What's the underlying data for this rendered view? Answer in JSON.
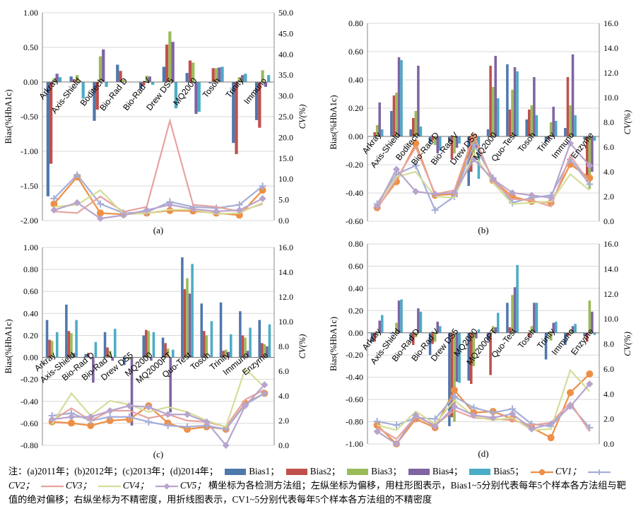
{
  "colors": {
    "bias": [
      "#4f78ad",
      "#c0504d",
      "#9bbb59",
      "#8064a2",
      "#4bacc6"
    ],
    "cv": [
      "#ee8f45",
      "#a4aed8",
      "#e6a39f",
      "#d5dd9a",
      "#b8a4cc"
    ]
  },
  "chart_data": [
    {
      "type": "bar",
      "panel_label": "(a)",
      "ylabel": "Bias(%HbA1c)",
      "y2label": "CV(%)",
      "ylim": [
        -2.0,
        1.0
      ],
      "yticks": [
        "1.00",
        "0.50",
        "0.00",
        "-0.50",
        "-1.00",
        "-1.50",
        "-2.00"
      ],
      "y2lim": [
        0,
        50
      ],
      "y2ticks": [
        "50.0",
        "45.0",
        "40.0",
        "35.0",
        "30.0",
        "25.0",
        "20.0",
        "15.0",
        "10.0",
        "5.0",
        "0.0"
      ],
      "categories": [
        "Arkray",
        "Axis-Shield",
        "Boditech",
        "Bio-Rad D",
        "Bio-Rad V",
        "Drew DS5",
        "MQ2000",
        "Tosoh",
        "Trinity",
        "Immuno"
      ],
      "bar_series": [
        {
          "name": "Bias1",
          "values": [
            -1.65,
            0.08,
            -0.56,
            0.25,
            -0.1,
            0.22,
            0.13,
            -0.02,
            -0.88,
            -0.55
          ]
        },
        {
          "name": "Bias2",
          "values": [
            -1.18,
            0.04,
            -0.4,
            0.16,
            -0.05,
            0.54,
            0.31,
            0.2,
            -1.04,
            -0.66
          ]
        },
        {
          "name": "Bias3",
          "values": [
            0.05,
            0.1,
            0.37,
            0.03,
            0.09,
            0.73,
            0.28,
            0.2,
            0.07,
            0.17
          ]
        },
        {
          "name": "Bias4",
          "values": [
            0.12,
            0.01,
            0.47,
            0.0,
            0.08,
            0.58,
            -0.46,
            0.21,
            0.1,
            -0.07
          ]
        },
        {
          "name": "Bias5",
          "values": [
            0.07,
            -0.24,
            -0.07,
            0.0,
            -0.04,
            -0.38,
            -0.43,
            0.22,
            0.12,
            0.1
          ]
        }
      ],
      "cv_series": [
        {
          "name": "CV1",
          "values": [
            4.0,
            10.5,
            1.8,
            1.5,
            1.8,
            2.4,
            2.3,
            1.8,
            1.3,
            7.3
          ]
        },
        {
          "name": "CV2",
          "values": [
            5.3,
            11.0,
            4.0,
            1.8,
            2.0,
            4.5,
            3.3,
            3.0,
            3.8,
            8.3
          ]
        },
        {
          "name": "CV3",
          "values": [
            2.2,
            1.8,
            5.8,
            2.1,
            3.3,
            24.0,
            3.8,
            3.3,
            2.2,
            4.0
          ]
        },
        {
          "name": "CV4",
          "values": [
            3.3,
            3.8,
            7.3,
            1.6,
            1.8,
            2.6,
            2.6,
            1.6,
            1.8,
            4.3
          ]
        },
        {
          "name": "CV5",
          "values": [
            2.5,
            4.3,
            0.5,
            1.3,
            2.5,
            3.8,
            2.8,
            2.2,
            2.5,
            5.3
          ]
        }
      ]
    },
    {
      "type": "bar",
      "panel_label": "(b)",
      "ylabel": "Bias(%HbA1c)",
      "y2label": "CV(%)",
      "ylim": [
        -0.6,
        0.8
      ],
      "yticks": [
        "0.80",
        "0.60",
        "0.40",
        "0.20",
        "0.00",
        "-0.20",
        "-0.40",
        "-0.60"
      ],
      "y2lim": [
        0,
        16
      ],
      "y2ticks": [
        "16.0",
        "14.0",
        "12.0",
        "10.0",
        "8.0",
        "6.0",
        "4.0",
        "2.0",
        "0.0"
      ],
      "categories": [
        "Arkray",
        "Axis-Shield",
        "Boditech",
        "Bio-Rad D",
        "Bio-Rad V",
        "Drew DS5",
        "MQ2000",
        "Quo-Test",
        "Tosoh",
        "Trinity",
        "Immuno",
        "Enzyme"
      ],
      "bar_series": [
        {
          "name": "Bias1",
          "values": [
            0.0,
            0.18,
            0.05,
            -0.05,
            -0.04,
            -0.35,
            0.05,
            0.51,
            0.12,
            -0.04,
            0.06,
            -0.02
          ]
        },
        {
          "name": "Bias2",
          "values": [
            0.03,
            0.29,
            0.13,
            -0.03,
            -0.16,
            -0.25,
            0.5,
            0.19,
            0.19,
            -0.02,
            0.42,
            -0.32
          ]
        },
        {
          "name": "Bias3",
          "values": [
            0.08,
            0.31,
            0.18,
            -0.06,
            -0.12,
            -0.18,
            0.35,
            0.33,
            0.22,
            0.1,
            0.22,
            -0.37
          ]
        },
        {
          "name": "Bias4",
          "values": [
            0.24,
            0.56,
            0.5,
            -0.12,
            -0.08,
            -0.08,
            0.57,
            0.49,
            0.42,
            0.21,
            0.58,
            -0.25
          ]
        },
        {
          "name": "Bias5",
          "values": [
            0.05,
            0.54,
            0.07,
            -0.1,
            -0.05,
            -0.3,
            0.27,
            0.46,
            0.15,
            0.11,
            0.15,
            -0.03
          ]
        }
      ],
      "cv_series": [
        {
          "name": "CV1",
          "values": [
            1.1,
            3.2,
            6.3,
            2.1,
            2.2,
            6.8,
            3.3,
            2.0,
            1.6,
            1.5,
            4.6,
            3.5
          ]
        },
        {
          "name": "CV2",
          "values": [
            1.4,
            3.8,
            4.5,
            0.9,
            2.0,
            6.2,
            3.5,
            1.5,
            1.9,
            2.1,
            5.0,
            3.0
          ]
        },
        {
          "name": "CV3",
          "values": [
            1.0,
            3.4,
            6.0,
            2.2,
            2.5,
            7.0,
            3.2,
            1.8,
            1.7,
            1.2,
            5.3,
            3.1
          ]
        },
        {
          "name": "CV4",
          "values": [
            1.3,
            3.6,
            4.0,
            2.0,
            1.9,
            5.5,
            3.1,
            1.4,
            1.5,
            1.6,
            3.8,
            2.5
          ]
        },
        {
          "name": "CV5",
          "values": [
            1.2,
            4.2,
            2.4,
            2.2,
            2.3,
            5.0,
            3.4,
            2.3,
            2.1,
            1.9,
            6.3,
            4.5
          ]
        }
      ]
    },
    {
      "type": "bar",
      "panel_label": "(c)",
      "ylabel": "Bias(%HbA1c)",
      "y2label": "CV(%)",
      "ylim": [
        -0.8,
        1.0
      ],
      "yticks": [
        "1.00",
        "0.80",
        "0.60",
        "0.40",
        "0.20",
        "0.00",
        "-0.20",
        "-0.40",
        "-0.60",
        "-0.80"
      ],
      "y2lim": [
        0,
        16
      ],
      "y2ticks": [
        "16.0",
        "14.0",
        "12.0",
        "10.0",
        "8.0",
        "6.0",
        "4.0",
        "2.0",
        "0.0"
      ],
      "categories": [
        "Arkray",
        "Axis-Shield",
        "Bio-Rad D",
        "Bio-Rad V",
        "Drew DS5",
        "MQ2000",
        "MQ2000PT",
        "Quo-Test",
        "Tosoh",
        "Trinity",
        "Immuno",
        "Enzyme"
      ],
      "bar_series": [
        {
          "name": "Bias1",
          "values": [
            0.34,
            0.48,
            0.03,
            0.23,
            -0.07,
            0.2,
            0.18,
            0.91,
            0.49,
            0.5,
            0.42,
            0.34
          ]
        },
        {
          "name": "Bias2",
          "values": [
            0.16,
            0.24,
            0.04,
            0.09,
            0.0,
            0.25,
            0.13,
            0.62,
            0.24,
            0.06,
            0.2,
            0.13
          ]
        },
        {
          "name": "Bias3",
          "values": [
            0.15,
            0.22,
            0.0,
            0.06,
            -0.02,
            0.24,
            0.08,
            0.72,
            0.2,
            0.07,
            0.18,
            0.12
          ]
        },
        {
          "name": "Bias4",
          "values": [
            0.0,
            0.04,
            -0.23,
            -0.03,
            -0.62,
            -0.03,
            -0.5,
            0.58,
            0.0,
            0.05,
            0.06,
            0.1
          ]
        },
        {
          "name": "Bias5",
          "values": [
            0.23,
            0.34,
            0.14,
            0.26,
            0.0,
            0.23,
            0.07,
            0.85,
            0.33,
            0.21,
            0.27,
            0.3
          ]
        }
      ],
      "cv_series": [
        {
          "name": "CV1",
          "values": [
            1.9,
            1.8,
            1.6,
            2.0,
            2.1,
            3.2,
            1.8,
            1.3,
            1.5,
            1.3,
            3.4,
            4.2
          ]
        },
        {
          "name": "CV2",
          "values": [
            2.4,
            2.6,
            2.0,
            2.3,
            2.3,
            1.9,
            1.6,
            1.5,
            1.6,
            1.3,
            3.3,
            4.2
          ]
        },
        {
          "name": "CV3",
          "values": [
            2.0,
            3.0,
            2.0,
            2.8,
            2.8,
            2.2,
            2.5,
            2.0,
            1.9,
            1.5,
            3.7,
            4.5
          ]
        },
        {
          "name": "CV4",
          "values": [
            1.7,
            4.2,
            2.4,
            3.6,
            3.3,
            2.7,
            3.1,
            2.7,
            2.0,
            1.5,
            6.2,
            4.7
          ]
        },
        {
          "name": "CV5",
          "values": [
            2.1,
            2.3,
            2.3,
            2.8,
            3.2,
            3.1,
            2.5,
            2.5,
            1.9,
            0.0,
            3.2,
            4.9
          ]
        }
      ]
    },
    {
      "type": "bar",
      "panel_label": "(d)",
      "ylabel": "Bias(%HbA1c)",
      "y2label": "CV(%)",
      "ylim": [
        -1.0,
        0.8
      ],
      "yticks": [
        "0.80",
        "0.60",
        "0.40",
        "0.20",
        "0.00",
        "-0.20",
        "-0.40",
        "-0.60",
        "-0.80",
        "-1.00"
      ],
      "y2lim": [
        0,
        16
      ],
      "y2ticks": [
        "16.0",
        "14.0",
        "12.0",
        "10.0",
        "8.0",
        "6.0",
        "4.0",
        "2.0",
        "0.0"
      ],
      "categories": [
        "Arkray",
        "Axis-Shield",
        "Bio-Rad D",
        "Bio-Rad V",
        "Drew DS5",
        "MQ2000",
        "MQ2000PT",
        "Quo-Test",
        "Tosoh",
        "Trinity",
        "Immuno",
        "Enzyme"
      ],
      "bar_series": [
        {
          "name": "Bias1",
          "values": [
            -0.08,
            -0.01,
            -0.07,
            -0.2,
            -0.84,
            -0.43,
            -0.07,
            0.27,
            0.0,
            -0.24,
            -0.11,
            -0.03
          ]
        },
        {
          "name": "Bias2",
          "values": [
            -0.08,
            0.0,
            -0.11,
            -0.1,
            -0.76,
            -0.46,
            -0.38,
            0.05,
            -0.04,
            -0.01,
            -0.03,
            -0.08
          ]
        },
        {
          "name": "Bias3",
          "values": [
            -0.01,
            0.09,
            -0.04,
            -0.08,
            -0.8,
            -0.3,
            0.06,
            0.34,
            0.06,
            -0.07,
            0.03,
            0.29
          ]
        },
        {
          "name": "Bias4",
          "values": [
            0.11,
            0.29,
            0.22,
            0.1,
            -0.44,
            -0.05,
            0.05,
            0.41,
            0.27,
            0.09,
            0.06,
            0.19
          ]
        },
        {
          "name": "Bias5",
          "values": [
            0.16,
            0.3,
            0.19,
            0.06,
            -0.45,
            0.03,
            0.18,
            0.61,
            0.27,
            0.1,
            0.08,
            -0.02
          ]
        }
      ],
      "cv_series": [
        {
          "name": "CV1",
          "values": [
            1.5,
            0.0,
            2.0,
            1.3,
            4.3,
            2.5,
            2.6,
            2.0,
            1.3,
            0.5,
            4.1,
            5.6
          ]
        },
        {
          "name": "CV2",
          "values": [
            1.8,
            1.5,
            2.1,
            2.0,
            3.8,
            2.9,
            2.5,
            2.8,
            1.6,
            1.4,
            3.1,
            1.3
          ]
        },
        {
          "name": "CV3",
          "values": [
            1.3,
            0.4,
            2.2,
            1.5,
            2.7,
            2.1,
            2.0,
            1.9,
            1.5,
            1.7,
            3.3,
            1.0
          ]
        },
        {
          "name": "CV4",
          "values": [
            1.5,
            1.1,
            2.6,
            1.6,
            3.5,
            2.2,
            1.9,
            2.1,
            1.1,
            1.2,
            5.9,
            4.2
          ]
        },
        {
          "name": "CV5",
          "values": [
            1.0,
            0.0,
            2.3,
            1.4,
            3.0,
            2.3,
            2.1,
            2.4,
            1.2,
            1.6,
            3.0,
            4.8
          ]
        }
      ]
    }
  ],
  "caption": {
    "prefix": "注：(a)2011年；(b)2012年；(c)2013年；(d)2014年；",
    "legend": [
      "Bias1；",
      "Bias2；",
      "Bias3；",
      "Bias4；",
      "Bias5；",
      "CV1；",
      "CV2；",
      "CV3；",
      "CV4；",
      "CV5；"
    ],
    "suffix": "横坐标为各检测方法组；左纵坐标为偏移，用柱形图表示，Bias1~5分别代表每年5个样本各方法组与靶值的绝对偏移；右纵坐标为不精密度，用折线图表示，CV1~5分别代表每年5个样本各方法组的不精密度"
  }
}
